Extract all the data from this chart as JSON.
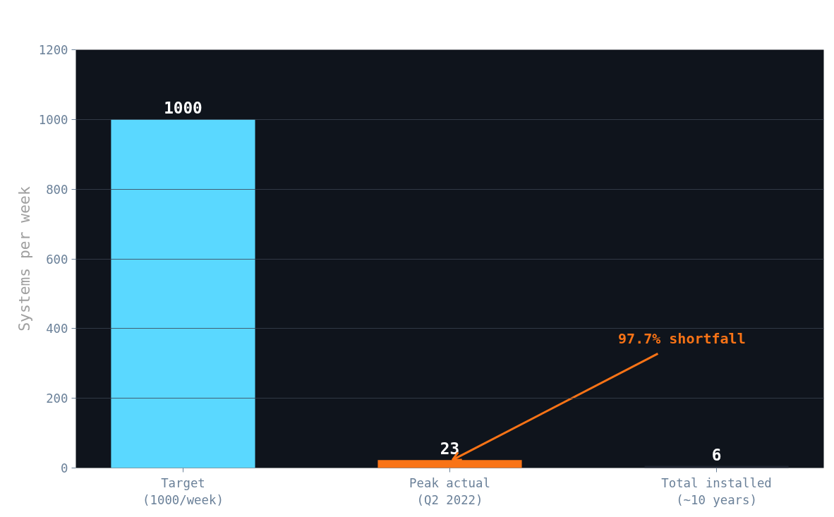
{
  "chart_data": {
    "type": "bar",
    "ylabel": "Systems per week",
    "categories": [
      "Target\n(1000/week)",
      "Peak actual\n(Q2 2022)",
      "Total installed\n(~10 years)"
    ],
    "values": [
      1000,
      23,
      6
    ],
    "colors": [
      "#5ad8ff",
      "#f97316",
      "#1e2430"
    ],
    "ylim": [
      0,
      1200
    ],
    "yticks": [
      0,
      200,
      400,
      600,
      800,
      1000,
      1200
    ],
    "grid": "y",
    "data_labels": true,
    "annotations": [
      {
        "text": "97.7% shortfall",
        "x": "Peak actual\n(Q2 2022)",
        "y": 23
      }
    ]
  }
}
